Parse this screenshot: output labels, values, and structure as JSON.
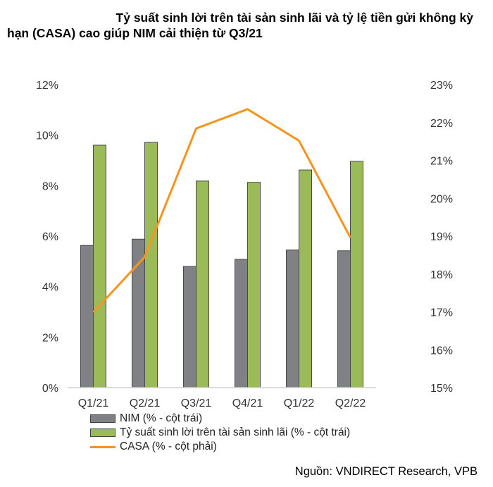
{
  "title_line1": "Tỷ suất sinh lời trên tài sản sinh lãi và tỷ lệ tiền gửi không kỳ",
  "title_line2": "hạn (CASA) cao giúp NIM cải thiện từ Q3/21",
  "source": "Nguồn: VNDIRECT Research, VPB",
  "chart_data": {
    "type": "bar+line",
    "categories": [
      "Q1/21",
      "Q2/21",
      "Q3/21",
      "Q4/21",
      "Q1/22",
      "Q2/22"
    ],
    "series": [
      {
        "name": "NIM (% - cột trái)",
        "type": "bar",
        "axis": "left",
        "color": "#808184",
        "values": [
          5.63,
          5.88,
          4.8,
          5.08,
          5.45,
          5.42
        ]
      },
      {
        "name": "Tỷ suất sinh lời trên tài sản sinh lãi (% - cột trái)",
        "type": "bar",
        "axis": "left",
        "color": "#9bbb59",
        "values": [
          9.6,
          9.71,
          8.18,
          8.13,
          8.62,
          8.96
        ]
      },
      {
        "name": "CASA (% - cột phải)",
        "type": "line",
        "axis": "right",
        "color": "#f7941d",
        "values": [
          16.99,
          18.45,
          21.84,
          22.35,
          21.52,
          18.96
        ]
      }
    ],
    "y_left": {
      "range": [
        0,
        12
      ],
      "ticks": [
        "0%",
        "2%",
        "4%",
        "6%",
        "8%",
        "10%",
        "12%"
      ]
    },
    "y_right": {
      "range": [
        15,
        23
      ],
      "ticks": [
        "15%",
        "16%",
        "17%",
        "18%",
        "19%",
        "20%",
        "21%",
        "22%",
        "23%"
      ]
    },
    "grid": false,
    "legend_placement": "bottom-left"
  }
}
